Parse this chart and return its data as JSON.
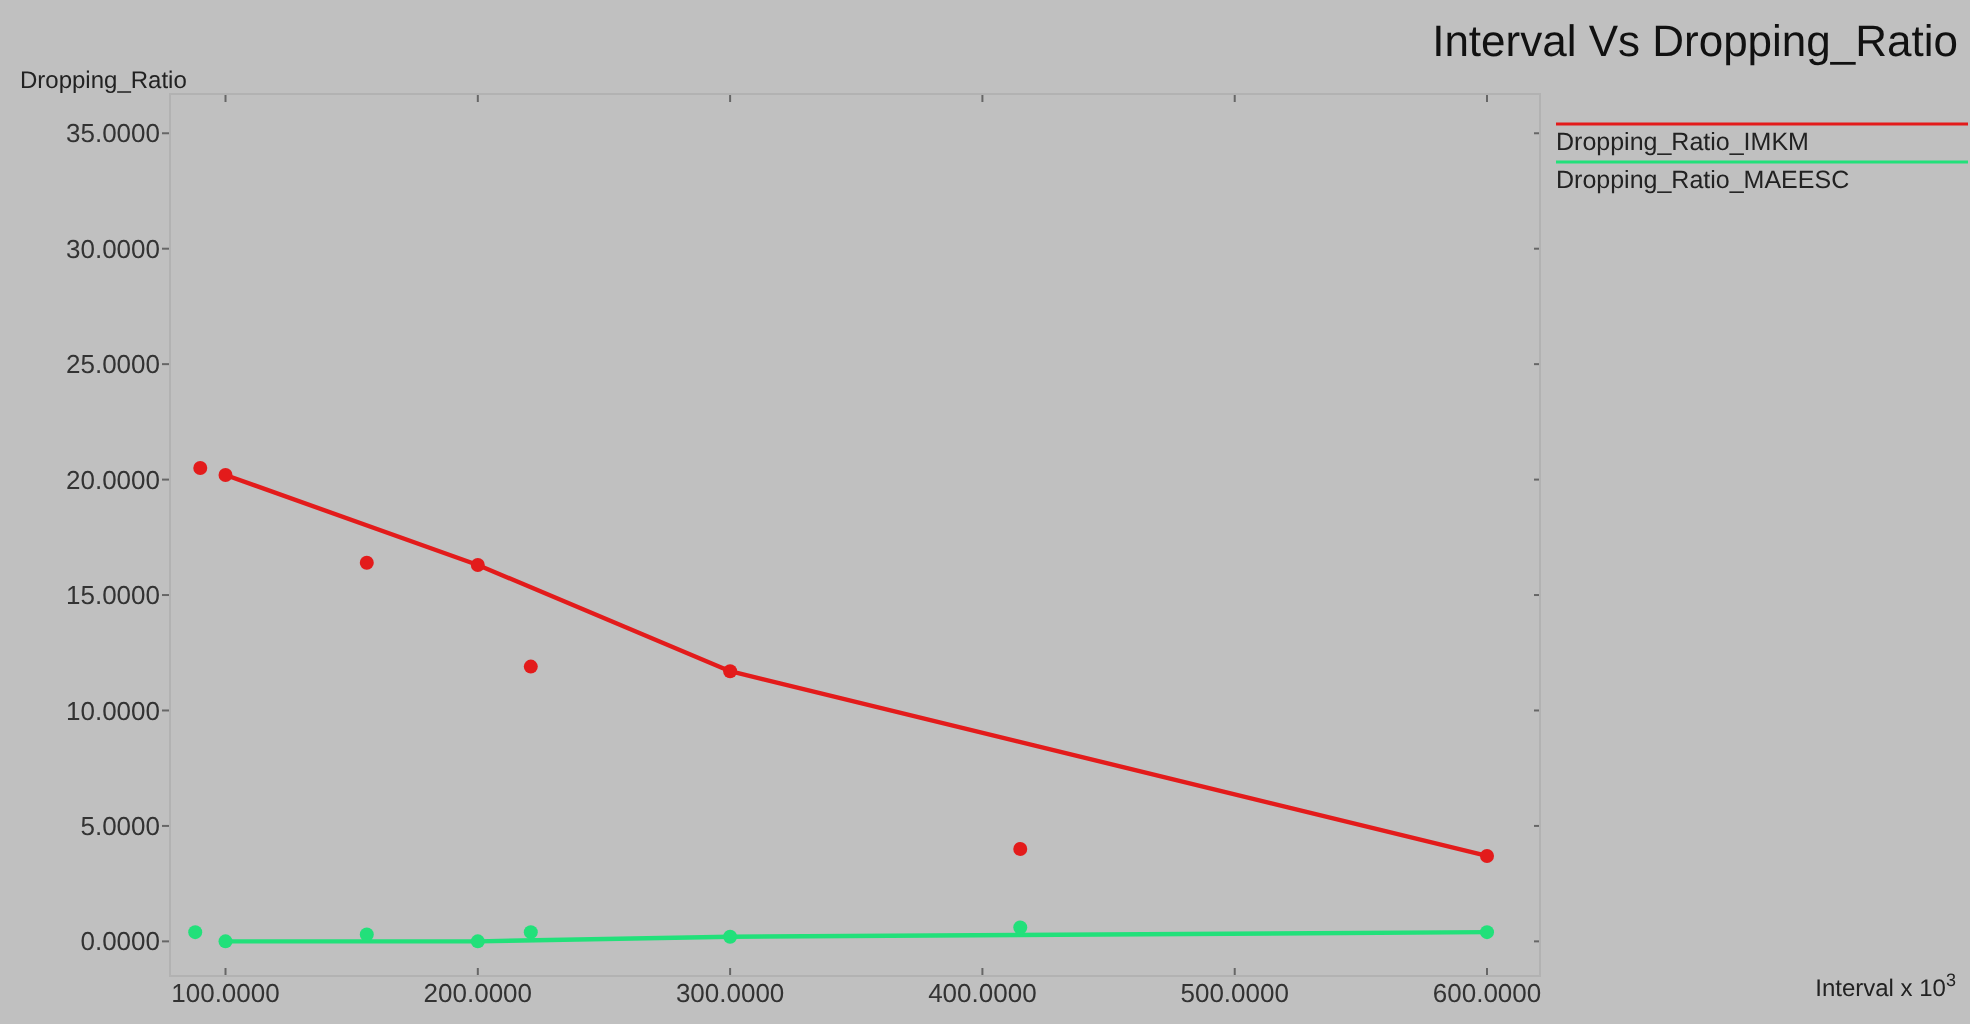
{
  "chart_data": {
    "type": "line",
    "title": "Interval Vs Dropping_Ratio",
    "annotations": [
      "Interval x 10$^{3}$"
    ],
    "ylabel": "Dropping_Ratio",
    "xlim": [
      78,
      621
    ],
    "ylim": [
      -1.5,
      36.7
    ],
    "xticks": [
      {
        "value": 100,
        "label": "100.0000"
      },
      {
        "value": 200,
        "label": "200.0000"
      },
      {
        "value": 300,
        "label": "300.0000"
      },
      {
        "value": 400,
        "label": "400.0000"
      },
      {
        "value": 500,
        "label": "500.0000"
      },
      {
        "value": 600,
        "label": "600.0000"
      }
    ],
    "yticks": [
      {
        "value": 0,
        "label": "0.0000"
      },
      {
        "value": 5,
        "label": "5.0000"
      },
      {
        "value": 10,
        "label": "10.0000"
      },
      {
        "value": 15,
        "label": "15.0000"
      },
      {
        "value": 20,
        "label": "20.0000"
      },
      {
        "value": 25,
        "label": "25.0000"
      },
      {
        "value": 30,
        "label": "30.0000"
      },
      {
        "value": 35,
        "label": "35.0000"
      }
    ],
    "marker": "circle",
    "legend": "top right",
    "grid": false,
    "series": [
      {
        "name": "Dropping_Ratio_IMKM",
        "color": "#e31b1b",
        "x": [
          100,
          200,
          300,
          600
        ],
        "values": [
          20.2,
          16.3,
          11.7,
          3.7
        ]
      },
      {
        "name": "Dropping_Ratio_MAEESC",
        "color": "#22e07a",
        "x": [
          100,
          200,
          300,
          600
        ],
        "values": [
          0,
          0,
          0.2,
          0.4
        ]
      },
      {
        "type": "scatter",
        "color": "#e31b1b",
        "x": [
          90,
          156,
          221,
          415
        ],
        "values": [
          20.5,
          16.4,
          11.9,
          4.0
        ]
      },
      {
        "type": "scatter",
        "color": "#22e07a",
        "x": [
          88,
          156,
          221,
          415
        ],
        "values": [
          0.4,
          0.3,
          0.4,
          0.6
        ]
      }
    ]
  }
}
